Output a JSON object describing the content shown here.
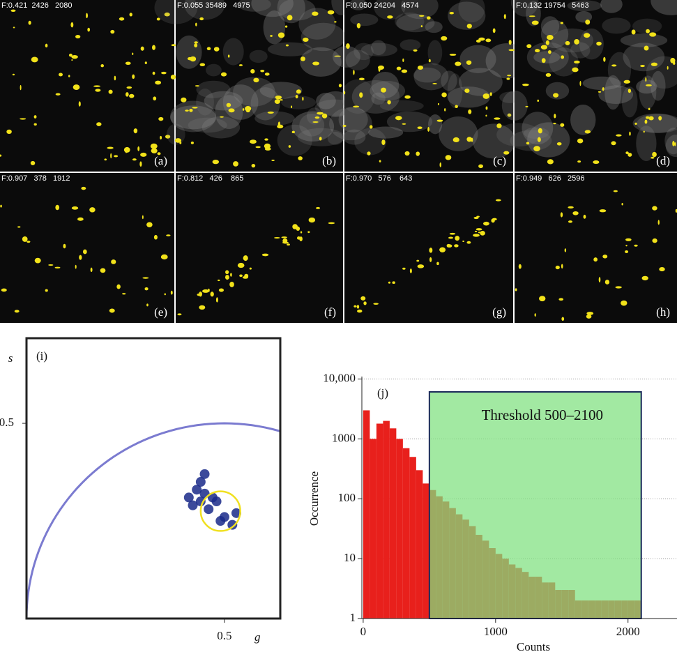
{
  "panels": [
    {
      "header": "F:0.421  2426   2080",
      "label": "(a)"
    },
    {
      "header": "F:0.055 35489   4975",
      "label": "(b)"
    },
    {
      "header": "F:0.050 24204   4574",
      "label": "(c)"
    },
    {
      "header": "F:0.132 19754   5463",
      "label": "(d)"
    },
    {
      "header": "F:0.907   378   1912",
      "label": "(e)"
    },
    {
      "header": "F:0.812   426    865",
      "label": "(f)"
    },
    {
      "header": "F:0.970   576    643",
      "label": "(g)"
    },
    {
      "header": "F:0.949   626   2596",
      "label": "(h)"
    }
  ],
  "chart_data": [
    {
      "type": "phasor",
      "panel_label": "(i)",
      "x_label": "g",
      "y_label": "s",
      "xlim": [
        0,
        0.641
      ],
      "ylim": [
        0,
        0.718
      ],
      "xticks": [
        0.5
      ],
      "yticks": [
        0.5
      ],
      "circle_color": "#7b7bd0",
      "color": "#1a2a8a",
      "x": [
        0.43,
        0.44,
        0.45,
        0.42,
        0.46,
        0.47,
        0.44,
        0.45,
        0.48,
        0.5,
        0.52,
        0.49,
        0.53,
        0.41
      ],
      "values": [
        0.33,
        0.3,
        0.32,
        0.29,
        0.28,
        0.31,
        0.35,
        0.37,
        0.3,
        0.26,
        0.24,
        0.25,
        0.27,
        0.31
      ],
      "cursor": {
        "g": 0.49,
        "s": 0.275,
        "r": 0.05,
        "color": "#f0e020"
      }
    },
    {
      "type": "histogram",
      "panel_label": "(j)",
      "x_label": "Counts",
      "y_label": "Occurrence",
      "log_scale": true,
      "grid": true,
      "color": "#e8201c",
      "xlim": [
        -10,
        2370
      ],
      "ylim": [
        1,
        11000
      ],
      "xticks": [
        0,
        1000,
        2000
      ],
      "yticks": [
        1,
        10,
        100,
        1000,
        {
          "value": 10000,
          "label": "10,000"
        }
      ],
      "bins": [
        0,
        50,
        100,
        150,
        200,
        250,
        300,
        350,
        400,
        450,
        500,
        550,
        600,
        650,
        700,
        750,
        800,
        850,
        900,
        950,
        1000,
        1050,
        1100,
        1150,
        1200,
        1250,
        1300,
        1350,
        1400,
        1450,
        1500,
        1550,
        1600,
        1650,
        1700,
        1750,
        1800,
        1850,
        1900,
        1950,
        2000,
        2050,
        2100
      ],
      "counts": [
        3000,
        1000,
        1800,
        2000,
        1500,
        1000,
        700,
        500,
        300,
        180,
        140,
        110,
        90,
        70,
        55,
        45,
        35,
        25,
        20,
        15,
        12,
        10,
        8,
        7,
        6,
        5,
        5,
        4,
        4,
        3,
        3,
        3,
        2,
        2,
        2,
        2,
        2,
        2,
        2,
        2,
        2,
        2
      ],
      "annotation": "Threshold  500–2100",
      "threshold": [
        500,
        2100
      ],
      "threshold_color": "#7ee07e"
    }
  ]
}
